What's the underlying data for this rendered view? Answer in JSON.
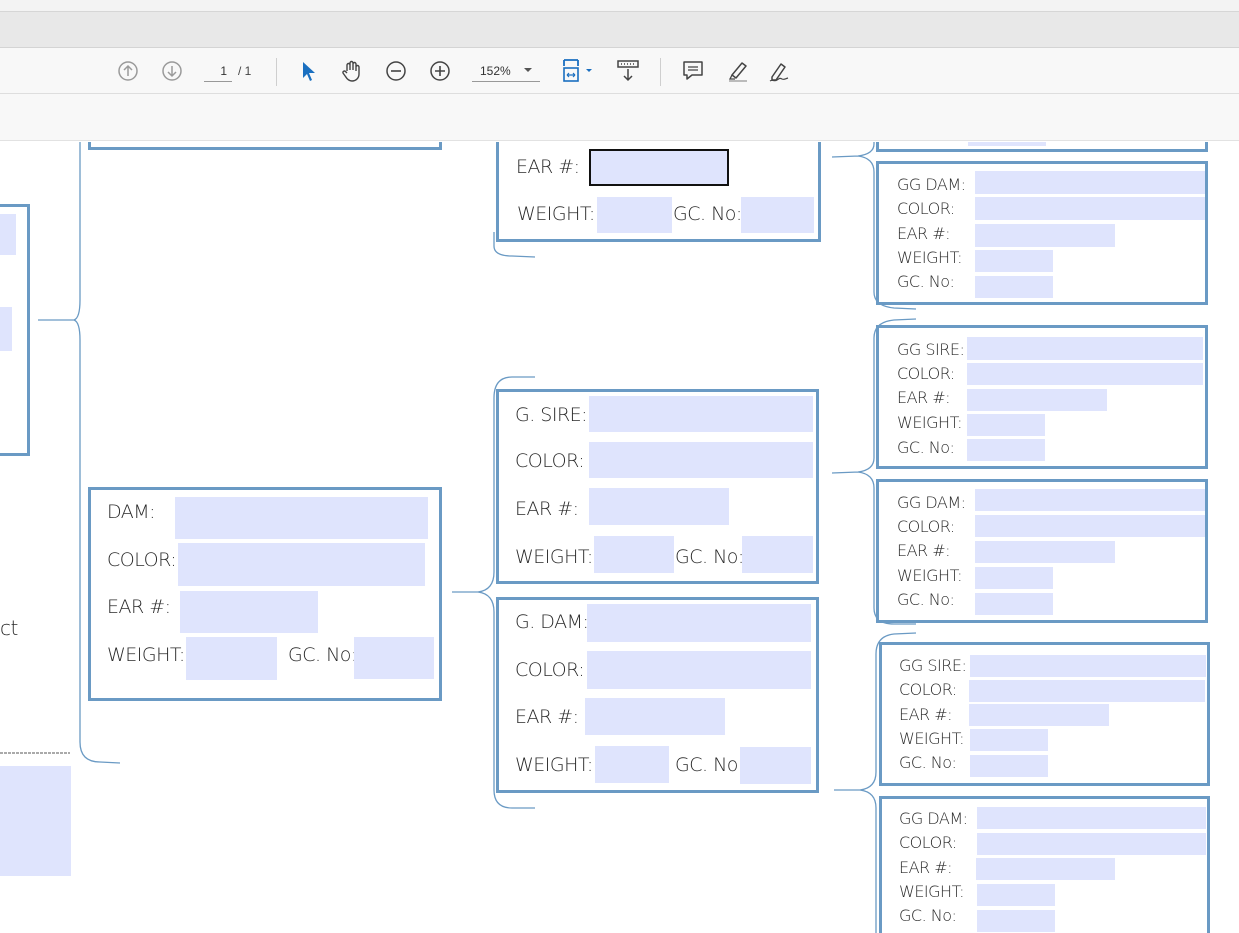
{
  "toolbar": {
    "page_current": "1",
    "page_total": "/ 1",
    "zoom": "152%"
  },
  "icons": [
    "prev-page-icon",
    "next-page-icon",
    "select-arrow-icon",
    "hand-tool-icon",
    "zoom-out-icon",
    "zoom-in-icon",
    "fit-page-icon",
    "scroll-mode-icon",
    "comment-icon",
    "highlight-icon",
    "sign-icon"
  ],
  "colors": {
    "box_border": "#6a9ac4",
    "field_fill": "#dfe4fd",
    "toolbar_bg": "#f8f8f8",
    "accent_icon": "#1a6fc0"
  },
  "pedigree": {
    "left_fragment": {
      "text": "ct",
      "footer": "."
    },
    "dam": {
      "label": "DAM:",
      "color": "COLOR:",
      "ear": "EAR #:",
      "weight": "WEIGHT:",
      "gc": "GC. No:"
    },
    "top_partial": {
      "ear": "EAR #:",
      "weight": "WEIGHT:",
      "gc": "GC. No:"
    },
    "g_sire": {
      "label": "G. SIRE:",
      "color": "COLOR:",
      "ear": "EAR #:",
      "weight": "WEIGHT:",
      "gc": "GC. No:"
    },
    "g_dam": {
      "label": "G. DAM:",
      "color": "COLOR:",
      "ear": "EAR #:",
      "weight": "WEIGHT:",
      "gc": "GC. No:"
    },
    "gg1": {
      "label": "GG DAM:",
      "color": "COLOR:",
      "ear": "EAR #:",
      "weight": "WEIGHT:",
      "gc": "GC. No:"
    },
    "gg2": {
      "label": "GG SIRE:",
      "color": "COLOR:",
      "ear": "EAR #:",
      "weight": "WEIGHT:",
      "gc": "GC. No:"
    },
    "gg3": {
      "label": "GG DAM:",
      "color": "COLOR:",
      "ear": "EAR #:",
      "weight": "WEIGHT:",
      "gc": "GC. No:"
    },
    "gg4": {
      "label": "GG SIRE:",
      "color": "COLOR:",
      "ear": "EAR #:",
      "weight": "WEIGHT:",
      "gc": "GC. No:"
    },
    "gg5": {
      "label": "GG DAM:",
      "color": "COLOR:",
      "ear": "EAR #:",
      "weight": "WEIGHT:",
      "gc": "GC. No:"
    }
  }
}
